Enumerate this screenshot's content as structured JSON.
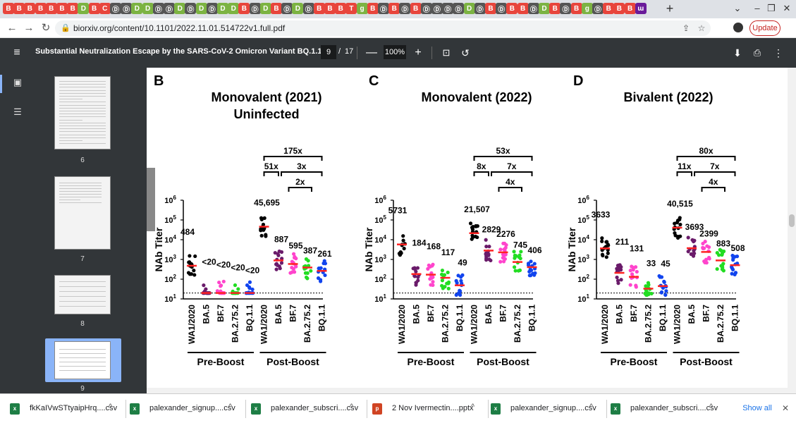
{
  "browser": {
    "tab_glyphs": [
      "B",
      "B",
      "B",
      "B",
      "B",
      "B",
      "B",
      "D",
      "B",
      "C",
      "Ⓓ",
      "Ⓓ",
      "D",
      "D",
      "Ⓓ",
      "Ⓓ",
      "D",
      "Ⓓ",
      "D",
      "Ⓓ",
      "D",
      "D",
      "B",
      "Ⓓ",
      "D",
      "B",
      "Ⓓ",
      "D",
      "Ⓓ",
      "B",
      "B",
      "B",
      "T",
      "g",
      "B",
      "Ⓓ",
      "B",
      "Ⓓ",
      "B",
      "Ⓓ",
      "Ⓓ",
      "Ⓓ",
      "Ⓓ",
      "D",
      "Ⓓ",
      "B",
      "Ⓓ",
      "B",
      "B",
      "Ⓓ",
      "D",
      "B",
      "Ⓓ",
      "B",
      "g",
      "Ⓓ",
      "B",
      "B",
      "B",
      "ɯ"
    ],
    "tab_colors": [
      "#e8453c",
      "#e8453c",
      "#e8453c",
      "#e8453c",
      "#e8453c",
      "#e8453c",
      "#e8453c",
      "#7cb342",
      "#e8453c",
      "#e8453c",
      "#555",
      "#555",
      "#7cb342",
      "#7cb342",
      "#555",
      "#555",
      "#7cb342",
      "#555",
      "#7cb342",
      "#555",
      "#7cb342",
      "#7cb342",
      "#e8453c",
      "#555",
      "#7cb342",
      "#e8453c",
      "#555",
      "#7cb342",
      "#555",
      "#e8453c",
      "#e8453c",
      "#e8453c",
      "#e8453c",
      "#7cb342",
      "#e8453c",
      "#555",
      "#e8453c",
      "#555",
      "#e8453c",
      "#555",
      "#555",
      "#555",
      "#555",
      "#7cb342",
      "#555",
      "#e8453c",
      "#555",
      "#e8453c",
      "#e8453c",
      "#555",
      "#7cb342",
      "#e8453c",
      "#555",
      "#e8453c",
      "#7cb342",
      "#555",
      "#e8453c",
      "#e8453c",
      "#e8453c",
      "#6a1b9a"
    ],
    "new_tab_label": "+",
    "minimize": "⌄",
    "min_btn": "–",
    "max_btn": "❐",
    "close_btn": "✕",
    "back": "←",
    "forward": "→",
    "reload": "↻",
    "url": "biorxiv.org/content/10.1101/2022.11.01.514722v1.full.pdf",
    "lock_icon": "🔒",
    "share_icon": "⇪",
    "star_icon": "☆",
    "update_label": "Update"
  },
  "pdf_toolbar": {
    "menu_icon": "≡",
    "title": "Substantial Neutralization Escape by the SARS-CoV-2 Omicron Variant BQ.1.1",
    "current_page": "9",
    "page_sep": "/",
    "total_pages": "17",
    "zoom_out": "—",
    "zoom": "100%",
    "zoom_in": "+",
    "fit_icon": "⊡",
    "rotate_icon": "↺",
    "download_icon": "⬇",
    "print_icon": "⎙",
    "more_icon": "⋮"
  },
  "sidebar": {
    "thumb_icon": "▣",
    "outline_icon": "☰",
    "pages": [
      "6",
      "7",
      "8",
      "9"
    ]
  },
  "figure": {
    "panels": [
      {
        "label": "B",
        "title_line1": "Monovalent (2021)",
        "title_line2": "Uninfected",
        "ylabel": "NAb Titer",
        "yticks": [
          "10",
          "10",
          "10",
          "10",
          "10",
          "10"
        ],
        "ytick_exps": [
          "6",
          "5",
          "4",
          "3",
          "2",
          "1"
        ],
        "variants": [
          "WA1/2020",
          "BA.5",
          "BF.7",
          "BA.2.75.2",
          "BQ.1.1",
          "WA1/2020",
          "BA.5",
          "BF.7",
          "BA.2.75.2",
          "BQ.1.1"
        ],
        "values": [
          "484",
          "<20",
          "<20",
          "<20",
          "<20",
          "45,695",
          "887",
          "595",
          "387",
          "261"
        ],
        "groups": [
          "Pre-Boost",
          "Post-Boost"
        ],
        "folds": [
          "51x",
          "3x",
          "2x",
          "175x"
        ]
      },
      {
        "label": "C",
        "title_line1": "Monovalent (2022)",
        "title_line2": "",
        "ylabel": "NAb Titer",
        "yticks": [
          "10",
          "10",
          "10",
          "10",
          "10",
          "10"
        ],
        "ytick_exps": [
          "6",
          "5",
          "4",
          "3",
          "2",
          "1"
        ],
        "variants": [
          "WA1/2020",
          "BA.5",
          "BF.7",
          "BA.2.75.2",
          "BQ.1.1",
          "WA1/2020",
          "BA.5",
          "BF.7",
          "BA.2.75.2",
          "BQ.1.1"
        ],
        "values": [
          "5731",
          "184",
          "168",
          "117",
          "49",
          "21,507",
          "2829",
          "2276",
          "745",
          "406"
        ],
        "groups": [
          "Pre-Boost",
          "Post-Boost"
        ],
        "folds": [
          "8x",
          "7x",
          "4x",
          "53x"
        ]
      },
      {
        "label": "D",
        "title_line1": "Bivalent (2022)",
        "title_line2": "",
        "ylabel": "NAb Titer",
        "yticks": [
          "10",
          "10",
          "10",
          "10",
          "10",
          "10"
        ],
        "ytick_exps": [
          "6",
          "5",
          "4",
          "3",
          "2",
          "1"
        ],
        "variants": [
          "WA1/2020",
          "BA.5",
          "BF.7",
          "BA.2.75.2",
          "BQ.1.1",
          "WA1/2020",
          "BA.5",
          "BF.7",
          "BA.2.75.2",
          "BQ.1.1"
        ],
        "values": [
          "3633",
          "211",
          "131",
          "33",
          "45",
          "40,515",
          "3693",
          "2399",
          "883",
          "508"
        ],
        "groups": [
          "Pre-Boost",
          "Post-Boost"
        ],
        "folds": [
          "11x",
          "7x",
          "4x",
          "80x"
        ]
      }
    ],
    "dot_colors": [
      "#000000",
      "#6a1b6a",
      "#ff44cc",
      "#22dd22",
      "#1144ee"
    ],
    "median_color": "#ff2222",
    "medians_log": [
      [
        2.68,
        1.3,
        1.3,
        1.3,
        1.3,
        4.66,
        2.95,
        2.77,
        2.59,
        2.42
      ],
      [
        3.76,
        2.26,
        2.23,
        2.07,
        1.69,
        4.33,
        3.45,
        3.36,
        2.87,
        2.61
      ],
      [
        3.56,
        2.32,
        2.12,
        1.52,
        1.65,
        4.61,
        3.57,
        3.38,
        2.95,
        2.71
      ]
    ]
  },
  "downloads": {
    "items": [
      {
        "name": "fkKaIVwSTtyaipHrq....csv",
        "icon": "x",
        "color": "#1e7e45"
      },
      {
        "name": "palexander_signup....csv",
        "icon": "x",
        "color": "#1e7e45"
      },
      {
        "name": "palexander_subscri....csv",
        "icon": "x",
        "color": "#1e7e45"
      },
      {
        "name": "2 Nov Ivermectin....pptx",
        "icon": "p",
        "color": "#d04423"
      },
      {
        "name": "palexander_signup....csv",
        "icon": "x",
        "color": "#1e7e45"
      },
      {
        "name": "palexander_subscri....csv",
        "icon": "x",
        "color": "#1e7e45"
      }
    ],
    "chevron": "^",
    "show_all": "Show all",
    "close": "✕"
  }
}
